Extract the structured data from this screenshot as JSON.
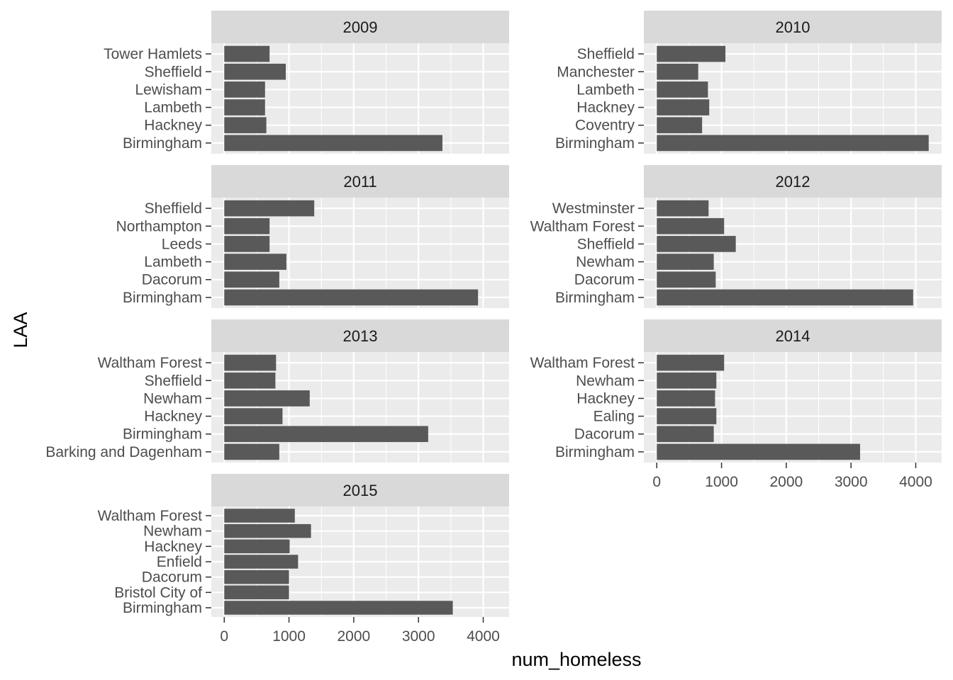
{
  "chart_data": {
    "type": "bar",
    "orientation": "horizontal",
    "layout": "facet_wrap",
    "facet_var": "year",
    "xlabel": "num_homeless",
    "ylabel": "LAA",
    "xlim": [
      -200,
      4400
    ],
    "x_ticks": [
      0,
      1000,
      2000,
      3000,
      4000
    ],
    "x_tick_labels": [
      "0",
      "1000",
      "2000",
      "3000",
      "4000"
    ],
    "grid": true,
    "colors": {
      "panel_bg": "#ebebeb",
      "strip_bg": "#d9d9d9",
      "bar": "#595959",
      "grid": "#ffffff"
    },
    "facets": [
      {
        "label": "2009",
        "categories": [
          "Birmingham",
          "Hackney",
          "Lambeth",
          "Lewisham",
          "Sheffield",
          "Tower Hamlets"
        ],
        "values": [
          3370,
          650,
          630,
          630,
          950,
          700
        ]
      },
      {
        "label": "2010",
        "categories": [
          "Birmingham",
          "Coventry",
          "Hackney",
          "Lambeth",
          "Manchester",
          "Sheffield"
        ],
        "values": [
          4200,
          700,
          810,
          790,
          640,
          1060
        ]
      },
      {
        "label": "2011",
        "categories": [
          "Birmingham",
          "Dacorum",
          "Lambeth",
          "Leeds",
          "Northampton",
          "Sheffield"
        ],
        "values": [
          3920,
          850,
          960,
          700,
          700,
          1390
        ]
      },
      {
        "label": "2012",
        "categories": [
          "Birmingham",
          "Dacorum",
          "Newham",
          "Sheffield",
          "Waltham Forest",
          "Westminster"
        ],
        "values": [
          3960,
          910,
          880,
          1220,
          1040,
          800
        ]
      },
      {
        "label": "2013",
        "categories": [
          "Barking and Dagenham",
          "Birmingham",
          "Hackney",
          "Newham",
          "Sheffield",
          "Waltham Forest"
        ],
        "values": [
          850,
          3150,
          900,
          1320,
          790,
          800
        ]
      },
      {
        "label": "2014",
        "categories": [
          "Birmingham",
          "Dacorum",
          "Ealing",
          "Hackney",
          "Newham",
          "Waltham Forest"
        ],
        "values": [
          3140,
          880,
          920,
          900,
          920,
          1040
        ]
      },
      {
        "label": "2015",
        "categories": [
          "Birmingham",
          "Bristol City of",
          "Dacorum",
          "Enfield",
          "Hackney",
          "Newham",
          "Waltham Forest"
        ],
        "values": [
          3530,
          1000,
          1000,
          1140,
          1010,
          1340,
          1090
        ]
      }
    ]
  }
}
